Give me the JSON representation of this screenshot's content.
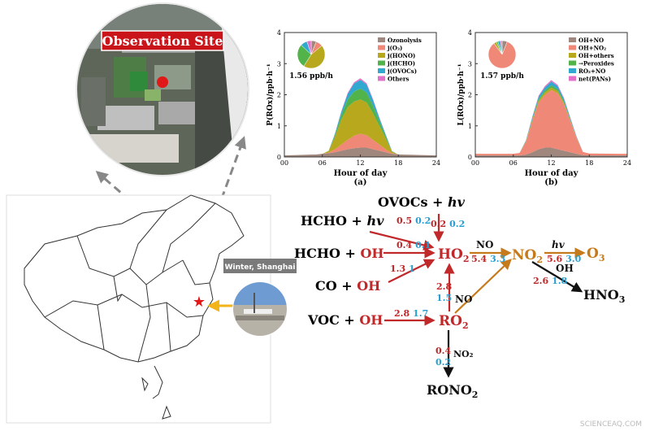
{
  "site": {
    "title": "Observation Site",
    "photo_caption": "Winter, Shanghai"
  },
  "panels": [
    {
      "id": "a",
      "ylabel": "P(ROx)/ppb·h⁻¹",
      "xlabel": "Hour of day",
      "caption": "(a)",
      "pie_label": "1.56 ppb/h",
      "pie_values": [
        6,
        8,
        45,
        28,
        8,
        5
      ],
      "y_ticks": [
        "0",
        "1",
        "2",
        "3",
        "4"
      ],
      "x_ticks": [
        "00",
        "06",
        "12",
        "18",
        "24"
      ],
      "legend": [
        {
          "label": "Ozonolysis",
          "color": "#a0877e"
        },
        {
          "label": "j(O₃)",
          "color": "#f08878"
        },
        {
          "label": "j(HONO)",
          "color": "#b8a81e"
        },
        {
          "label": "j(HCHO)",
          "color": "#52b34a"
        },
        {
          "label": "j(OVOCs)",
          "color": "#31a8cf"
        },
        {
          "label": "Others",
          "color": "#e272c9"
        }
      ]
    },
    {
      "id": "b",
      "ylabel": "L(ROx)/ppb·h⁻¹",
      "xlabel": "Hour of day",
      "caption": "(b)",
      "pie_label": "1.57 ppb/h",
      "pie_values": [
        6,
        84,
        3,
        2,
        3,
        2
      ],
      "y_ticks": [
        "0",
        "1",
        "2",
        "3",
        "4"
      ],
      "x_ticks": [
        "00",
        "06",
        "12",
        "18",
        "24"
      ],
      "legend": [
        {
          "label": "OH+NO",
          "color": "#a0877e"
        },
        {
          "label": "OH+NO₂",
          "color": "#f08878"
        },
        {
          "label": "OH+others",
          "color": "#b8a81e"
        },
        {
          "label": "→Peroxides",
          "color": "#52b34a"
        },
        {
          "label": "RO₂+NO",
          "color": "#31a8cf"
        },
        {
          "label": "net(PANs)",
          "color": "#e272c9"
        }
      ]
    }
  ],
  "chart_data": [
    {
      "type": "area",
      "title": "",
      "xlabel": "Hour of day",
      "ylabel": "P(ROx)/ppb·h⁻¹",
      "xlim": [
        0,
        24
      ],
      "ylim": [
        0,
        4
      ],
      "x": [
        0,
        5,
        6,
        7,
        8,
        9,
        10,
        11,
        12,
        13,
        14,
        15,
        16,
        17,
        18,
        24
      ],
      "series": [
        {
          "name": "Ozonolysis",
          "values": [
            0.05,
            0.08,
            0.1,
            0.12,
            0.15,
            0.2,
            0.25,
            0.28,
            0.3,
            0.3,
            0.25,
            0.2,
            0.15,
            0.1,
            0.08,
            0.05
          ]
        },
        {
          "name": "j(O₃)",
          "values": [
            0,
            0,
            0,
            0.02,
            0.1,
            0.2,
            0.3,
            0.4,
            0.45,
            0.4,
            0.3,
            0.2,
            0.1,
            0.02,
            0,
            0
          ]
        },
        {
          "name": "j(HONO)",
          "values": [
            0,
            0,
            0,
            0.05,
            0.4,
            0.8,
            1.05,
            1.1,
            1.1,
            1.05,
            0.85,
            0.6,
            0.35,
            0.05,
            0,
            0
          ]
        },
        {
          "name": "j(HCHO)",
          "values": [
            0,
            0,
            0,
            0.01,
            0.06,
            0.15,
            0.25,
            0.32,
            0.35,
            0.32,
            0.25,
            0.15,
            0.07,
            0.01,
            0,
            0
          ]
        },
        {
          "name": "j(OVOCs)",
          "values": [
            0,
            0,
            0,
            0,
            0.04,
            0.1,
            0.18,
            0.26,
            0.28,
            0.26,
            0.18,
            0.1,
            0.05,
            0.01,
            0,
            0
          ]
        },
        {
          "name": "Others",
          "values": [
            0,
            0,
            0,
            0,
            0.01,
            0.02,
            0.03,
            0.04,
            0.05,
            0.04,
            0.03,
            0.02,
            0.01,
            0,
            0,
            0
          ]
        }
      ]
    },
    {
      "type": "area",
      "title": "",
      "xlabel": "Hour of day",
      "ylabel": "L(ROx)/ppb·h⁻¹",
      "xlim": [
        0,
        24
      ],
      "ylim": [
        0,
        4
      ],
      "x": [
        0,
        5,
        6,
        7,
        8,
        9,
        10,
        11,
        12,
        13,
        14,
        15,
        16,
        17,
        18,
        24
      ],
      "series": [
        {
          "name": "OH+NO",
          "values": [
            0.05,
            0.05,
            0.05,
            0.05,
            0.08,
            0.15,
            0.25,
            0.3,
            0.3,
            0.25,
            0.2,
            0.15,
            0.1,
            0.06,
            0.05,
            0.05
          ]
        },
        {
          "name": "OH+NO₂",
          "values": [
            0.05,
            0.05,
            0.05,
            0.08,
            0.4,
            1.0,
            1.5,
            1.7,
            1.85,
            1.8,
            1.5,
            1.0,
            0.5,
            0.1,
            0.06,
            0.05
          ]
        },
        {
          "name": "OH+others",
          "values": [
            0,
            0,
            0,
            0,
            0.02,
            0.04,
            0.06,
            0.08,
            0.08,
            0.07,
            0.05,
            0.03,
            0.02,
            0,
            0,
            0
          ]
        },
        {
          "name": "→Peroxides",
          "values": [
            0,
            0,
            0,
            0,
            0.01,
            0.03,
            0.05,
            0.06,
            0.07,
            0.06,
            0.04,
            0.02,
            0.01,
            0,
            0,
            0
          ]
        },
        {
          "name": "RO₂+NO",
          "values": [
            0,
            0,
            0,
            0,
            0.02,
            0.05,
            0.08,
            0.1,
            0.12,
            0.1,
            0.08,
            0.05,
            0.02,
            0,
            0,
            0
          ]
        },
        {
          "name": "net(PANs)",
          "values": [
            0,
            0,
            0,
            0,
            0.01,
            0.02,
            0.03,
            0.04,
            0.05,
            0.04,
            0.03,
            0.02,
            0.01,
            0,
            0,
            0
          ]
        }
      ]
    }
  ],
  "scheme": {
    "species": {
      "hcho_hv": [
        "HCHO + ",
        "hv"
      ],
      "hcho_oh": [
        "HCHO + ",
        "OH"
      ],
      "co_oh": [
        "CO + ",
        "OH"
      ],
      "voc_oh": [
        "VOC + ",
        "OH"
      ],
      "ovocs_hv": [
        "OVOCs + ",
        "hv"
      ],
      "ho2": [
        "HO",
        "2"
      ],
      "no2": [
        "NO",
        "2"
      ],
      "o3": [
        "O",
        "3"
      ],
      "hno3": [
        "HNO",
        "3"
      ],
      "ro2": [
        "RO",
        "2"
      ],
      "rono2": [
        "RONO",
        "2"
      ]
    },
    "labels": {
      "no_ho2_no2": "NO",
      "no_ro2_ho2": "NO",
      "hv_no2": "hv",
      "oh_no2": "OH",
      "no2_ro2": "NO₂"
    },
    "rates": [
      {
        "id": "hcho_hv",
        "red": "0.5",
        "blue": "0.2"
      },
      {
        "id": "ovocs_hv",
        "red": "0.2",
        "blue": "0.2"
      },
      {
        "id": "hcho_oh",
        "red": "0.4",
        "blue": "0.1"
      },
      {
        "id": "co_oh",
        "red": "1.3",
        "blue": "1"
      },
      {
        "id": "ho2_no2",
        "red": "5.4",
        "blue": "3.3"
      },
      {
        "id": "no2_o3",
        "red": "5.6",
        "blue": "3.0"
      },
      {
        "id": "no2_hno3",
        "red": "2.6",
        "blue": "1.8"
      },
      {
        "id": "ro2_ho2",
        "red": "2.8",
        "blue": "1.5"
      },
      {
        "id": "voc_ro2",
        "red": "2.8",
        "blue": "1.7"
      },
      {
        "id": "ro2_rono2",
        "red": "0.4",
        "blue": "0.2"
      }
    ],
    "colors": {
      "red": "#c0282a",
      "blue": "#2a9fd0",
      "orange": "#c57a1c",
      "black": "#111111"
    }
  },
  "watermark": "SCIENCEAQ.COM"
}
